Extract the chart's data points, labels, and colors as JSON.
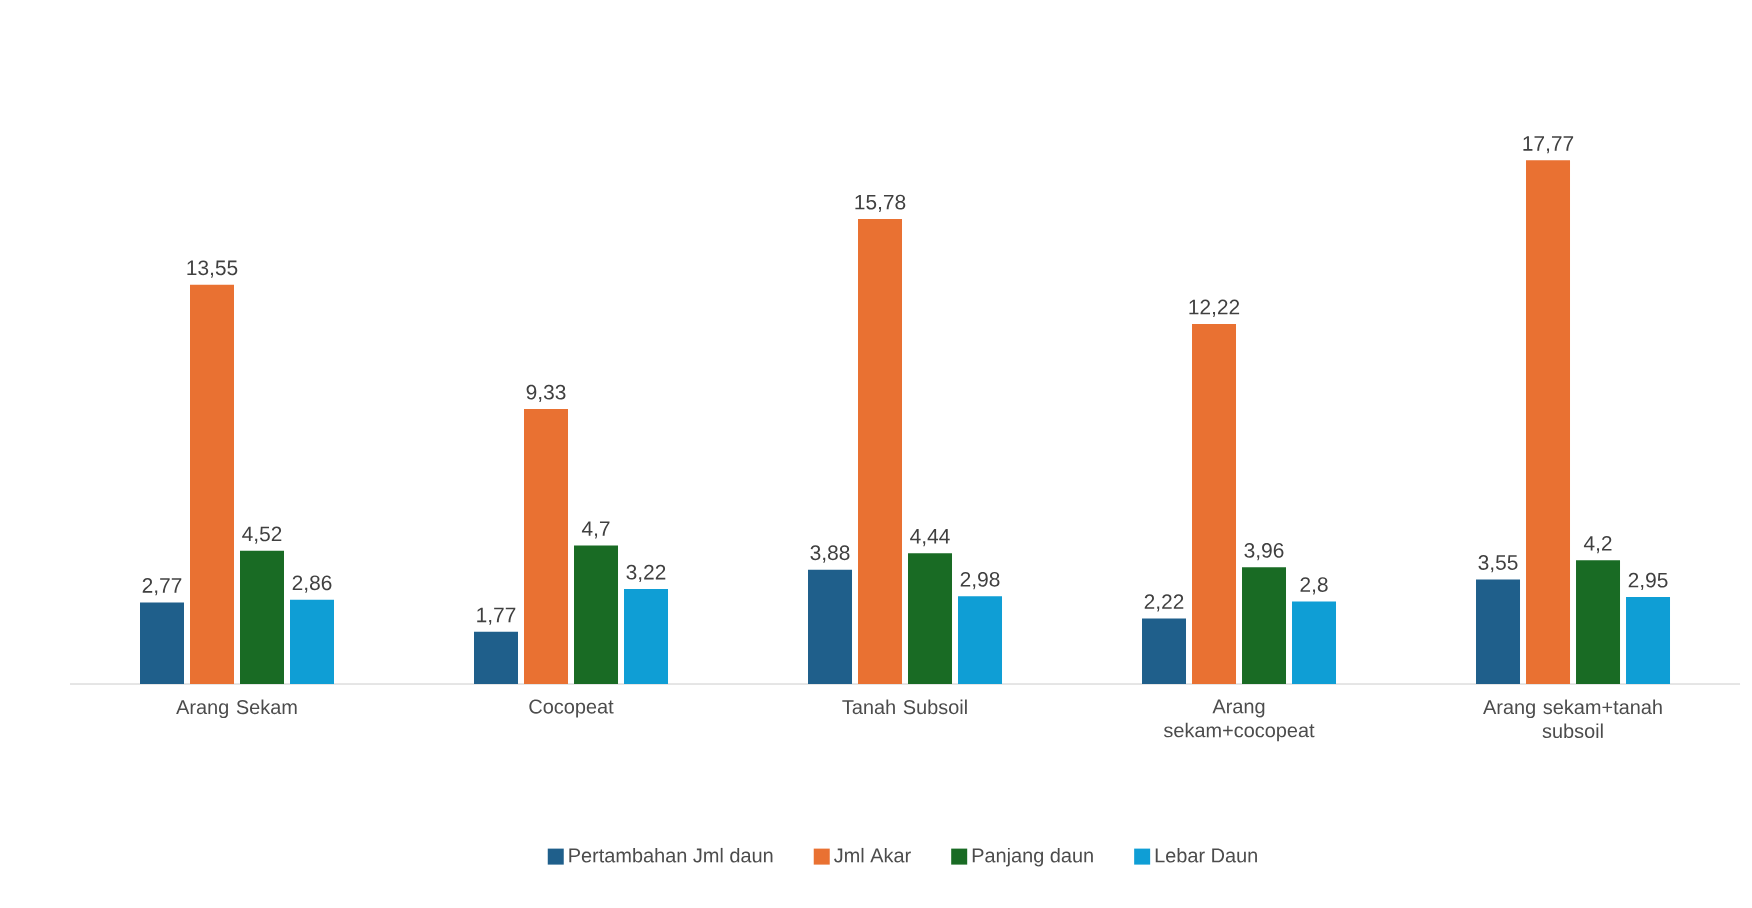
{
  "chart_data": {
    "type": "bar",
    "categories": [
      "Arang Sekam",
      "Cocopeat",
      "Tanah Subsoil",
      "Arang sekam+cocopeat",
      "Arang sekam+tanah subsoil"
    ],
    "series": [
      {
        "name": "Pertambahan Jml daun",
        "color": "#1f5f8b",
        "values": [
          2.77,
          1.77,
          3.88,
          2.22,
          3.55
        ],
        "value_labels": [
          "2,77",
          "1,77",
          "3,88",
          "2,22",
          "3,55"
        ]
      },
      {
        "name": "Jml Akar",
        "color": "#e97132",
        "values": [
          13.55,
          9.33,
          15.78,
          12.22,
          17.77
        ],
        "value_labels": [
          "13,55",
          "9,33",
          "15,78",
          "12,22",
          "17,77"
        ]
      },
      {
        "name": "Panjang daun",
        "color": "#196b24",
        "values": [
          4.52,
          4.7,
          4.44,
          3.96,
          4.2
        ],
        "value_labels": [
          "4,52",
          "4,7",
          "4,44",
          "3,96",
          "4,2"
        ]
      },
      {
        "name": "Lebar Daun",
        "color": "#0f9ed5",
        "values": [
          2.86,
          3.22,
          2.98,
          2.8,
          2.95
        ],
        "value_labels": [
          "2,86",
          "3,22",
          "2,98",
          "2,8",
          "2,95"
        ]
      }
    ],
    "legend": "bottom"
  }
}
